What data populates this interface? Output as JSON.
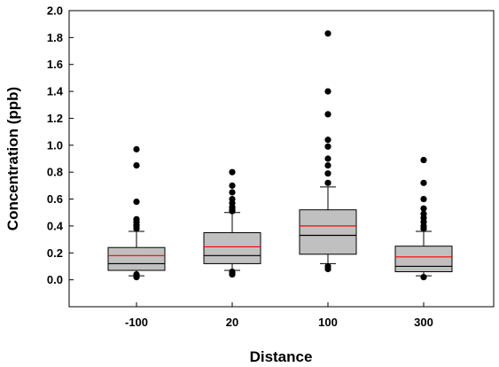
{
  "chart_data": {
    "type": "box",
    "xlabel": "Distance",
    "ylabel": "Concentration (ppb)",
    "ylim": [
      -0.2,
      2.0
    ],
    "yticks": [
      0.0,
      0.2,
      0.4,
      0.6,
      0.8,
      1.0,
      1.2,
      1.4,
      1.6,
      1.8,
      2.0
    ],
    "ytick_labels": [
      "0.0",
      "0.2",
      "0.4",
      "0.6",
      "0.8",
      "1.0",
      "1.2",
      "1.4",
      "1.6",
      "1.8",
      "2.0"
    ],
    "grid": false,
    "legend": "none",
    "colors": {
      "box_fill": "#c0c0c0",
      "median_line": "#000000",
      "mean_line": "#ff0000",
      "outlier": "#000000"
    },
    "categories": [
      "-100",
      "20",
      "100",
      "300"
    ],
    "boxes": [
      {
        "category": "-100",
        "whisker_low": 0.03,
        "q1": 0.07,
        "median": 0.12,
        "mean": 0.18,
        "q3": 0.24,
        "whisker_high": 0.36,
        "outliers": [
          0.02,
          0.04,
          0.38,
          0.4,
          0.41,
          0.43,
          0.45,
          0.58,
          0.85,
          0.97
        ]
      },
      {
        "category": "20",
        "whisker_low": 0.07,
        "q1": 0.12,
        "median": 0.18,
        "mean": 0.245,
        "q3": 0.35,
        "whisker_high": 0.5,
        "outliers": [
          0.04,
          0.05,
          0.06,
          0.51,
          0.52,
          0.54,
          0.57,
          0.6,
          0.65,
          0.7,
          0.8
        ]
      },
      {
        "category": "100",
        "whisker_low": 0.12,
        "q1": 0.19,
        "median": 0.33,
        "mean": 0.4,
        "q3": 0.52,
        "whisker_high": 0.69,
        "outliers": [
          0.08,
          0.1,
          0.72,
          0.79,
          0.85,
          0.9,
          0.99,
          1.04,
          1.23,
          1.4,
          1.83
        ]
      },
      {
        "category": "300",
        "whisker_low": 0.03,
        "q1": 0.06,
        "median": 0.1,
        "mean": 0.17,
        "q3": 0.25,
        "whisker_high": 0.36,
        "outliers": [
          0.02,
          0.38,
          0.4,
          0.43,
          0.46,
          0.49,
          0.53,
          0.6,
          0.72,
          0.89
        ]
      }
    ]
  }
}
